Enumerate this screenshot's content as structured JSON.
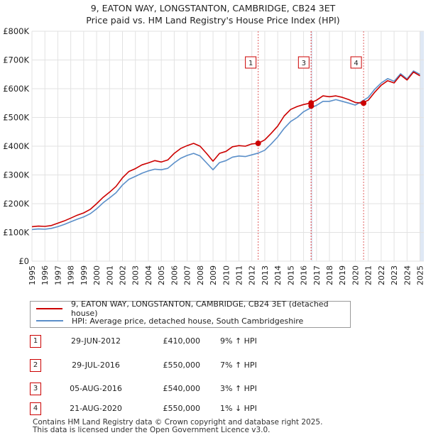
{
  "chart_data": {
    "type": "line",
    "title": "9, EATON WAY, LONGSTANTON, CAMBRIDGE, CB24 3ET",
    "subtitle": "Price paid vs. HM Land Registry's House Price Index (HPI)",
    "xlabel": "",
    "ylabel": "",
    "xlim": [
      1995,
      2025.3
    ],
    "ylim": [
      0,
      800000
    ],
    "y_ticks": [
      0,
      100000,
      200000,
      300000,
      400000,
      500000,
      600000,
      700000,
      800000
    ],
    "y_tick_labels": [
      "£0",
      "£100K",
      "£200K",
      "£300K",
      "£400K",
      "£500K",
      "£600K",
      "£700K",
      "£800K"
    ],
    "x_ticks": [
      1995,
      1996,
      1997,
      1998,
      1999,
      2000,
      2001,
      2002,
      2003,
      2004,
      2005,
      2006,
      2007,
      2008,
      2009,
      2010,
      2011,
      2012,
      2013,
      2014,
      2015,
      2016,
      2017,
      2018,
      2019,
      2020,
      2021,
      2022,
      2023,
      2024,
      2025
    ],
    "grid": true,
    "series": [
      {
        "name": "9, EATON WAY, LONGSTANTON, CAMBRIDGE, CB24 3ET (detached house)",
        "color": "#cc0000",
        "x": [
          1995.0,
          1995.5,
          1996.0,
          1996.5,
          1997.0,
          1997.5,
          1998.0,
          1998.5,
          1999.0,
          1999.5,
          2000.0,
          2000.5,
          2001.0,
          2001.5,
          2002.0,
          2002.5,
          2003.0,
          2003.5,
          2004.0,
          2004.5,
          2005.0,
          2005.5,
          2006.0,
          2006.5,
          2007.0,
          2007.5,
          2008.0,
          2008.5,
          2009.0,
          2009.5,
          2010.0,
          2010.5,
          2011.0,
          2011.5,
          2012.0,
          2012.5,
          2013.0,
          2013.5,
          2014.0,
          2014.5,
          2015.0,
          2015.5,
          2016.0,
          2016.5,
          2017.0,
          2017.5,
          2018.0,
          2018.5,
          2019.0,
          2019.5,
          2020.0,
          2020.5,
          2021.0,
          2021.5,
          2022.0,
          2022.5,
          2023.0,
          2023.5,
          2024.0,
          2024.5,
          2025.0
        ],
        "y": [
          120000,
          122000,
          121000,
          124000,
          132000,
          140000,
          150000,
          160000,
          168000,
          180000,
          200000,
          222000,
          240000,
          260000,
          290000,
          312000,
          322000,
          335000,
          342000,
          350000,
          345000,
          352000,
          375000,
          392000,
          402000,
          410000,
          400000,
          375000,
          348000,
          375000,
          382000,
          398000,
          402000,
          400000,
          408000,
          410000,
          422000,
          445000,
          470000,
          505000,
          528000,
          538000,
          545000,
          550000,
          560000,
          575000,
          572000,
          575000,
          570000,
          562000,
          552000,
          550000,
          560000,
          588000,
          612000,
          628000,
          620000,
          648000,
          630000,
          658000,
          645000
        ]
      },
      {
        "name": "HPI: Average price, detached house, South Cambridgeshire",
        "color": "#5b8fc9",
        "x": [
          1995.0,
          1995.5,
          1996.0,
          1996.5,
          1997.0,
          1997.5,
          1998.0,
          1998.5,
          1999.0,
          1999.5,
          2000.0,
          2000.5,
          2001.0,
          2001.5,
          2002.0,
          2002.5,
          2003.0,
          2003.5,
          2004.0,
          2004.5,
          2005.0,
          2005.5,
          2006.0,
          2006.5,
          2007.0,
          2007.5,
          2008.0,
          2008.5,
          2009.0,
          2009.5,
          2010.0,
          2010.5,
          2011.0,
          2011.5,
          2012.0,
          2012.5,
          2013.0,
          2013.5,
          2014.0,
          2014.5,
          2015.0,
          2015.5,
          2016.0,
          2016.5,
          2017.0,
          2017.5,
          2018.0,
          2018.5,
          2019.0,
          2019.5,
          2020.0,
          2020.5,
          2021.0,
          2021.5,
          2022.0,
          2022.5,
          2023.0,
          2023.5,
          2024.0,
          2024.5,
          2025.0
        ],
        "y": [
          110000,
          112000,
          111000,
          114000,
          120000,
          128000,
          137000,
          146000,
          154000,
          165000,
          182000,
          203000,
          220000,
          238000,
          265000,
          285000,
          295000,
          306000,
          314000,
          320000,
          318000,
          323000,
          342000,
          358000,
          368000,
          375000,
          366000,
          342000,
          318000,
          343000,
          350000,
          362000,
          366000,
          364000,
          370000,
          376000,
          386000,
          408000,
          432000,
          462000,
          486000,
          500000,
          520000,
          532000,
          542000,
          556000,
          556000,
          562000,
          556000,
          550000,
          543000,
          556000,
          570000,
          598000,
          620000,
          635000,
          626000,
          652000,
          634000,
          662000,
          650000
        ]
      }
    ],
    "sales": [
      {
        "label": "1",
        "x": 2012.49,
        "price": 410000
      },
      {
        "label": "2",
        "x": 2016.58,
        "price": 550000
      },
      {
        "label": "3",
        "x": 2016.59,
        "price": 540000
      },
      {
        "label": "4",
        "x": 2020.64,
        "price": 550000
      }
    ],
    "chart_markers": [
      {
        "label": "1",
        "x": 2012.49
      },
      {
        "label": "3",
        "x": 2016.59
      },
      {
        "label": "4",
        "x": 2020.64
      }
    ],
    "shaded_regions": [
      [
        2016.58,
        2016.59
      ],
      [
        2025.0,
        2025.3
      ]
    ],
    "legend_position": "bottom"
  },
  "legend": {
    "property_label": "9, EATON WAY, LONGSTANTON, CAMBRIDGE, CB24 3ET (detached house)",
    "hpi_label": "HPI: Average price, detached house, South Cambridgeshire",
    "property_color": "#cc0000",
    "hpi_color": "#5b8fc9"
  },
  "transactions": [
    {
      "num": "1",
      "date": "29-JUN-2012",
      "price": "£410,000",
      "hpi": "9% ↑ HPI"
    },
    {
      "num": "2",
      "date": "29-JUL-2016",
      "price": "£550,000",
      "hpi": "7% ↑ HPI"
    },
    {
      "num": "3",
      "date": "05-AUG-2016",
      "price": "£540,000",
      "hpi": "3% ↑ HPI"
    },
    {
      "num": "4",
      "date": "21-AUG-2020",
      "price": "£550,000",
      "hpi": "1% ↓ HPI"
    }
  ],
  "footer": {
    "line1": "Contains HM Land Registry data © Crown copyright and database right 2025.",
    "line2": "This data is licensed under the Open Government Licence v3.0."
  }
}
